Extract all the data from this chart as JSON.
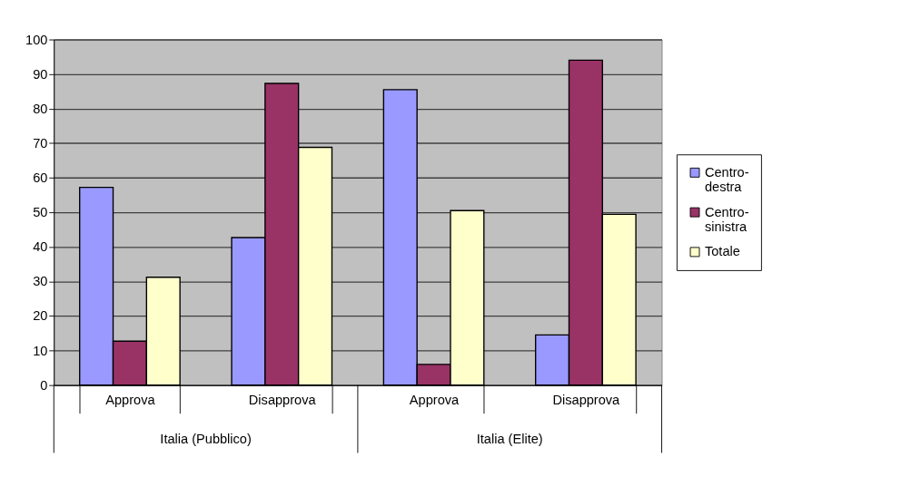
{
  "chart_data": {
    "type": "bar",
    "categories": [
      "Approva",
      "Disapprova",
      "Approva",
      "Disapprova"
    ],
    "series": [
      {
        "name": "Centro-destra",
        "color": "#9999ff",
        "values": [
          57.2,
          42.7,
          85.5,
          14.5
        ]
      },
      {
        "name": "Centro-sinistra",
        "color": "#993366",
        "values": [
          12.7,
          87.3,
          6.0,
          94.0
        ]
      },
      {
        "name": "Totale",
        "color": "#ffffcc",
        "values": [
          31.2,
          68.8,
          50.5,
          49.4
        ]
      }
    ],
    "annotations": [
      "Italia (Pubblico)",
      "Italia (Elite)"
    ],
    "ylim": [
      0,
      100
    ],
    "yticks": [
      0,
      10,
      20,
      30,
      40,
      50,
      60,
      70,
      80,
      90,
      100
    ],
    "grid": "y",
    "legend": "right"
  }
}
